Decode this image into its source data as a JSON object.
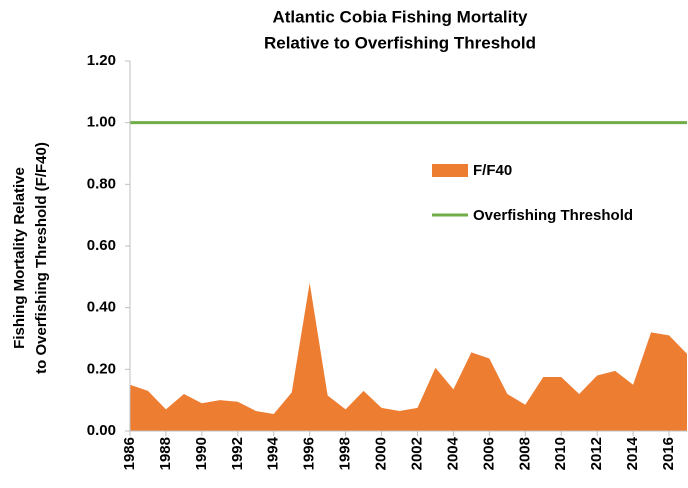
{
  "chart_data": {
    "type": "area",
    "title": [
      "Atlantic Cobia Fishing Mortality",
      "Relative to Overfishing Threshold"
    ],
    "ylabel": [
      "Fishing Mortality Relative",
      "to Overfishing Threshold (F/F40)"
    ],
    "x": [
      1986,
      1987,
      1988,
      1989,
      1990,
      1991,
      1992,
      1993,
      1994,
      1995,
      1996,
      1997,
      1998,
      1999,
      2000,
      2001,
      2002,
      2003,
      2004,
      2005,
      2006,
      2007,
      2008,
      2009,
      2010,
      2011,
      2012,
      2013,
      2014,
      2015,
      2016,
      2017
    ],
    "series": [
      {
        "name": "F/F40",
        "color": "#ed7d31",
        "values": [
          0.15,
          0.13,
          0.07,
          0.12,
          0.09,
          0.1,
          0.095,
          0.065,
          0.055,
          0.125,
          0.48,
          0.115,
          0.07,
          0.13,
          0.075,
          0.065,
          0.075,
          0.205,
          0.135,
          0.255,
          0.235,
          0.12,
          0.085,
          0.175,
          0.175,
          0.12,
          0.18,
          0.195,
          0.15,
          0.32,
          0.31,
          0.25
        ]
      }
    ],
    "threshold": {
      "name": "Overfishing Threshold",
      "value": 1,
      "color": "#70ad47"
    },
    "xlim": [
      1986,
      2017
    ],
    "xticks": [
      1986,
      1988,
      1990,
      1992,
      1994,
      1996,
      1998,
      2000,
      2002,
      2004,
      2006,
      2008,
      2010,
      2012,
      2014,
      2016
    ],
    "ylim": [
      0,
      1.2
    ],
    "yticks": [
      {
        "value": 0,
        "label": "0.00"
      },
      {
        "value": 0.2,
        "label": "0.20"
      },
      {
        "value": 0.4,
        "label": "0.40"
      },
      {
        "value": 0.6,
        "label": "0.60"
      },
      {
        "value": 0.8,
        "label": "0.80"
      },
      {
        "value": 1,
        "label": "1.00"
      },
      {
        "value": 1.2,
        "label": "1.20"
      }
    ],
    "grid": false
  }
}
